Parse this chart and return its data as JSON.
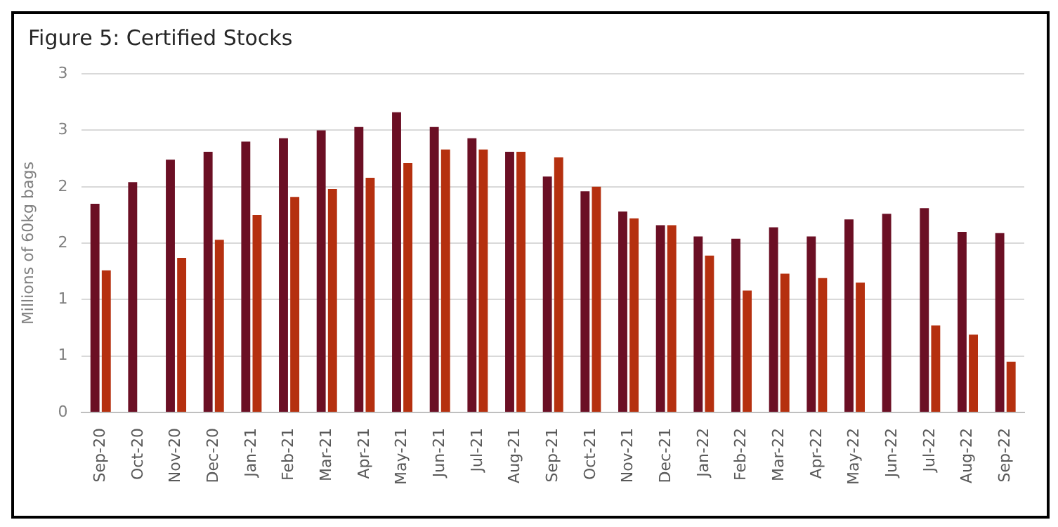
{
  "chart_data": {
    "type": "bar",
    "title": "Figure 5: Certified Stocks",
    "ylabel": "Millions of 60kg bags",
    "categories": [
      "Sep-20",
      "Oct-20",
      "Nov-20",
      "Dec-20",
      "Jan-21",
      "Feb-21",
      "Mar-21",
      "Apr-21",
      "May-21",
      "Jun-21",
      "Jul-21",
      "Aug-21",
      "Sep-21",
      "Oct-21",
      "Nov-21",
      "Dec-21",
      "Jan-22",
      "Feb-22",
      "Mar-22",
      "Apr-22",
      "May-22",
      "Jun-22",
      "Jul-22",
      "Aug-22",
      "Sep-22"
    ],
    "series": [
      {
        "color": "#6b0f24",
        "values": [
          1.85,
          2.04,
          2.24,
          2.31,
          2.4,
          2.43,
          2.5,
          2.53,
          2.66,
          2.53,
          2.43,
          2.31,
          2.09,
          1.96,
          1.78,
          1.66,
          1.56,
          1.54,
          1.64,
          1.56,
          1.71,
          1.76,
          1.81,
          1.6,
          1.59
        ]
      },
      {
        "color": "#b5300f",
        "values": [
          1.26,
          null,
          1.37,
          1.53,
          1.75,
          1.91,
          1.98,
          2.08,
          2.21,
          2.33,
          2.33,
          2.31,
          2.26,
          2.0,
          1.72,
          1.66,
          1.39,
          1.08,
          1.23,
          1.19,
          1.15,
          null,
          0.77,
          0.69,
          0.45
        ]
      }
    ],
    "ylim": [
      0,
      3
    ],
    "yticks": [
      0,
      {
        "value": 0.5,
        "label": "1"
      },
      {
        "value": 1,
        "label": "1"
      },
      {
        "value": 1.5,
        "label": "2"
      },
      {
        "value": 2,
        "label": "2"
      },
      {
        "value": 2.5,
        "label": "3"
      },
      {
        "value": 3,
        "label": "3"
      }
    ],
    "grid": "y"
  }
}
